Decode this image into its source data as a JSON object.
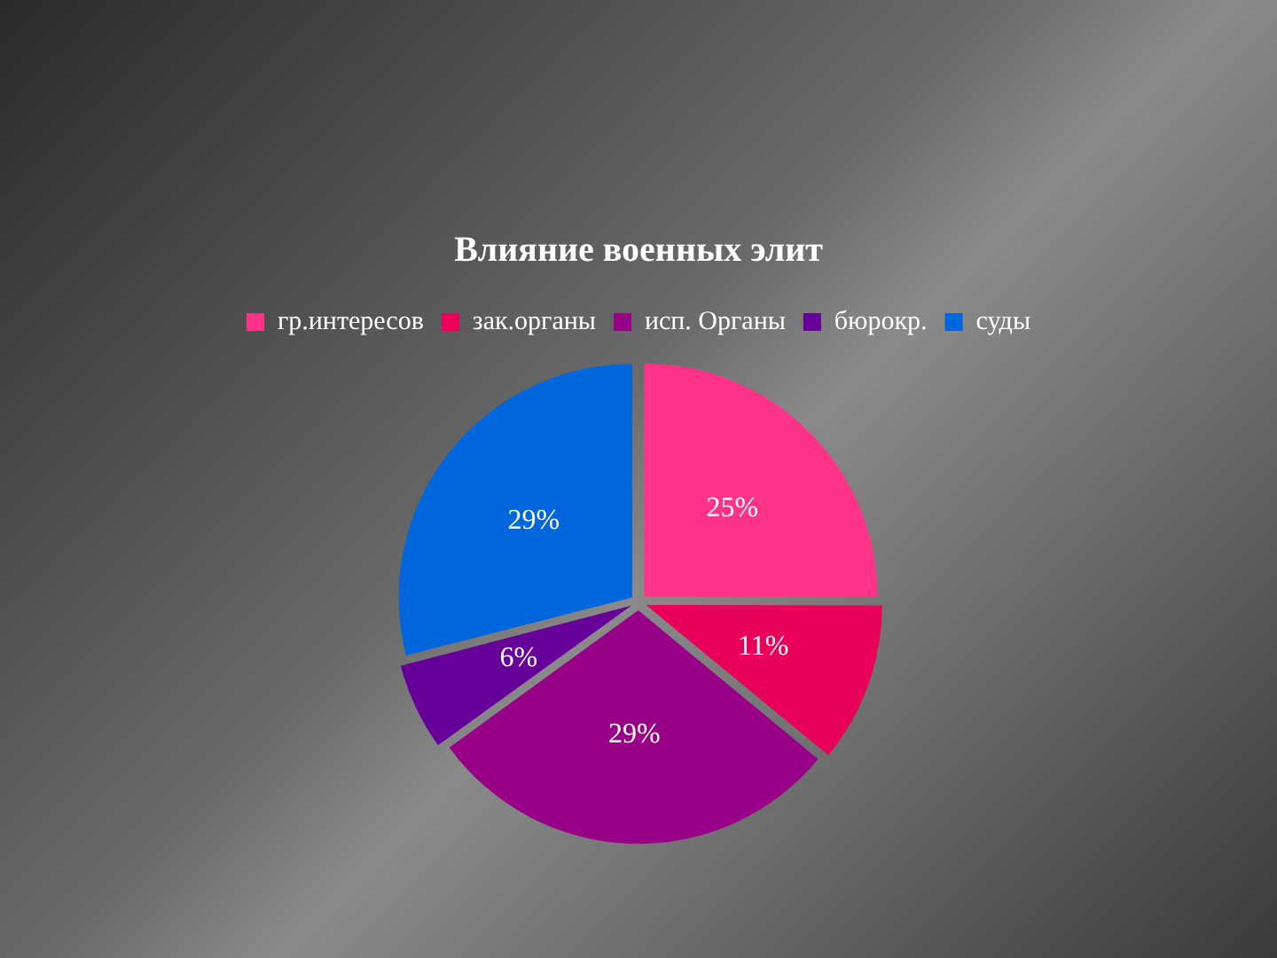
{
  "chart_data": {
    "type": "pie",
    "title": "Влияние военных элит",
    "categories": [
      "гр.интересов",
      "зак.органы",
      "исп. Органы",
      "бюрокр.",
      "суды"
    ],
    "values": [
      25,
      11,
      29,
      6,
      29
    ],
    "colors": [
      "#ff3388",
      "#e8005a",
      "#990088",
      "#660099",
      "#0066dd"
    ],
    "value_labels": [
      "25%",
      "11%",
      "29%",
      "6%",
      "29%"
    ],
    "legend": "top"
  }
}
